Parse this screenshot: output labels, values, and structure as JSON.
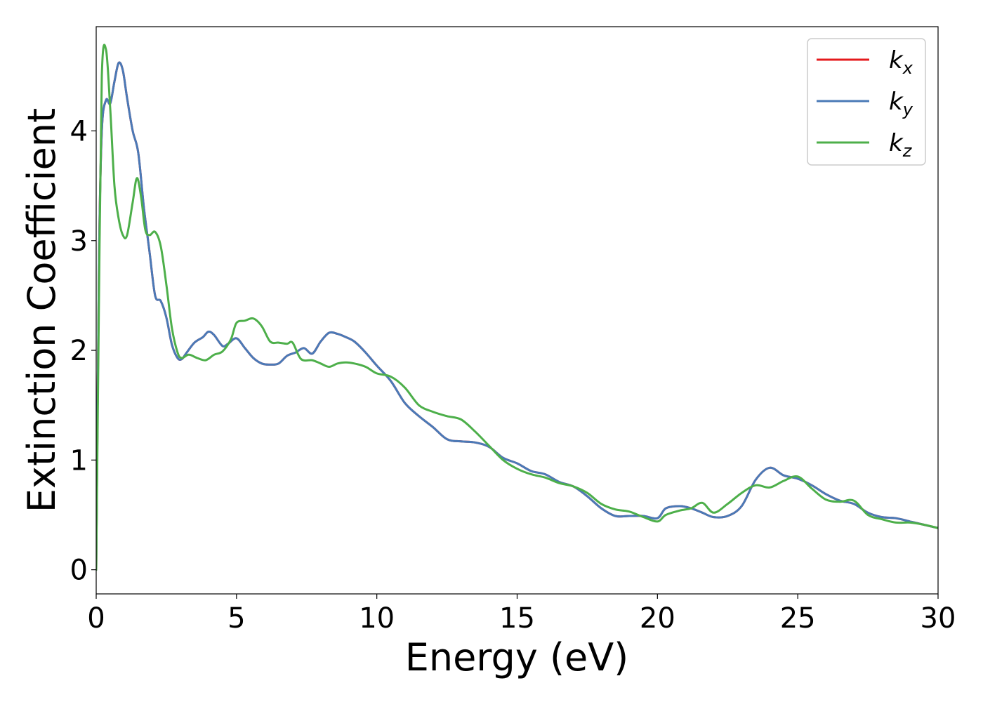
{
  "chart_data": {
    "type": "line",
    "xlabel": "Energy (eV)",
    "ylabel": "Extinction Coefficient",
    "xlim": [
      0,
      30
    ],
    "ylim": [
      -0.22,
      4.95
    ],
    "xticks": [
      "0",
      "5",
      "10",
      "15",
      "20",
      "25",
      "30"
    ],
    "yticks": [
      "0",
      "1",
      "2",
      "3",
      "4"
    ],
    "grid": false,
    "legend_position": "top-right",
    "series": [
      {
        "name": "k_x",
        "label_main": "k",
        "label_sub": "x",
        "color": "#e41a1c",
        "x": [
          0,
          0.1,
          0.2,
          0.35,
          0.5,
          0.65,
          0.8,
          0.95,
          1.1,
          1.3,
          1.5,
          1.7,
          1.9,
          2.1,
          2.3,
          2.5,
          2.7,
          2.9,
          3.05,
          3.2,
          3.5,
          3.8,
          4.0,
          4.2,
          4.5,
          4.7,
          5.0,
          5.3,
          5.6,
          5.9,
          6.2,
          6.5,
          6.8,
          7.1,
          7.4,
          7.7,
          8.0,
          8.3,
          8.6,
          8.9,
          9.2,
          9.6,
          10.0,
          10.5,
          11.0,
          11.5,
          12.0,
          12.5,
          13.0,
          13.5,
          14.0,
          14.5,
          15.0,
          15.5,
          16.0,
          16.5,
          17.0,
          17.5,
          18.0,
          18.5,
          19.0,
          19.5,
          20.0,
          20.3,
          20.8,
          21.2,
          21.6,
          22.0,
          22.5,
          23.0,
          23.5,
          24.0,
          24.5,
          25.0,
          25.5,
          26.0,
          26.5,
          27.0,
          27.5,
          28.0,
          28.5,
          29.0,
          29.5,
          30.0
        ],
        "y": [
          0.0,
          2.8,
          4.0,
          4.28,
          4.25,
          4.45,
          4.62,
          4.55,
          4.3,
          4.0,
          3.8,
          3.3,
          2.9,
          2.5,
          2.45,
          2.3,
          2.05,
          1.93,
          1.92,
          1.97,
          2.07,
          2.12,
          2.17,
          2.14,
          2.04,
          2.06,
          2.11,
          2.02,
          1.93,
          1.88,
          1.87,
          1.88,
          1.95,
          1.98,
          2.02,
          1.97,
          2.08,
          2.16,
          2.15,
          2.12,
          2.08,
          1.98,
          1.86,
          1.72,
          1.52,
          1.4,
          1.3,
          1.19,
          1.17,
          1.16,
          1.12,
          1.02,
          0.97,
          0.9,
          0.87,
          0.8,
          0.76,
          0.67,
          0.56,
          0.49,
          0.49,
          0.49,
          0.47,
          0.56,
          0.58,
          0.56,
          0.52,
          0.48,
          0.49,
          0.58,
          0.82,
          0.93,
          0.86,
          0.83,
          0.77,
          0.69,
          0.63,
          0.6,
          0.52,
          0.48,
          0.47,
          0.44,
          0.41,
          0.38
        ]
      },
      {
        "name": "k_y",
        "label_main": "k",
        "label_sub": "y",
        "color": "#4a7ab7",
        "x": [
          0,
          0.1,
          0.2,
          0.35,
          0.5,
          0.65,
          0.8,
          0.95,
          1.1,
          1.3,
          1.5,
          1.7,
          1.9,
          2.1,
          2.3,
          2.5,
          2.7,
          2.9,
          3.05,
          3.2,
          3.5,
          3.8,
          4.0,
          4.2,
          4.5,
          4.7,
          5.0,
          5.3,
          5.6,
          5.9,
          6.2,
          6.5,
          6.8,
          7.1,
          7.4,
          7.7,
          8.0,
          8.3,
          8.6,
          8.9,
          9.2,
          9.6,
          10.0,
          10.5,
          11.0,
          11.5,
          12.0,
          12.5,
          13.0,
          13.5,
          14.0,
          14.5,
          15.0,
          15.5,
          16.0,
          16.5,
          17.0,
          17.5,
          18.0,
          18.5,
          19.0,
          19.5,
          20.0,
          20.3,
          20.8,
          21.2,
          21.6,
          22.0,
          22.5,
          23.0,
          23.5,
          24.0,
          24.5,
          25.0,
          25.5,
          26.0,
          26.5,
          27.0,
          27.5,
          28.0,
          28.5,
          29.0,
          29.5,
          30.0
        ],
        "y": [
          0.0,
          2.8,
          4.0,
          4.28,
          4.25,
          4.45,
          4.62,
          4.55,
          4.3,
          4.0,
          3.8,
          3.3,
          2.9,
          2.5,
          2.45,
          2.3,
          2.05,
          1.93,
          1.92,
          1.97,
          2.07,
          2.12,
          2.17,
          2.14,
          2.04,
          2.06,
          2.11,
          2.02,
          1.93,
          1.88,
          1.87,
          1.88,
          1.95,
          1.98,
          2.02,
          1.97,
          2.08,
          2.16,
          2.15,
          2.12,
          2.08,
          1.98,
          1.86,
          1.72,
          1.52,
          1.4,
          1.3,
          1.19,
          1.17,
          1.16,
          1.12,
          1.02,
          0.97,
          0.9,
          0.87,
          0.8,
          0.76,
          0.67,
          0.56,
          0.49,
          0.49,
          0.49,
          0.47,
          0.56,
          0.58,
          0.56,
          0.52,
          0.48,
          0.49,
          0.58,
          0.82,
          0.93,
          0.86,
          0.83,
          0.77,
          0.69,
          0.63,
          0.6,
          0.52,
          0.48,
          0.47,
          0.44,
          0.41,
          0.38
        ]
      },
      {
        "name": "k_z",
        "label_main": "k",
        "label_sub": "z",
        "color": "#4daf4a",
        "x": [
          0,
          0.1,
          0.2,
          0.35,
          0.5,
          0.65,
          0.8,
          0.95,
          1.1,
          1.3,
          1.45,
          1.6,
          1.75,
          1.9,
          2.1,
          2.3,
          2.5,
          2.7,
          2.9,
          3.05,
          3.3,
          3.6,
          3.9,
          4.2,
          4.5,
          4.8,
          5.0,
          5.3,
          5.6,
          5.9,
          6.2,
          6.5,
          6.8,
          7.0,
          7.3,
          7.7,
          8.0,
          8.3,
          8.6,
          8.9,
          9.2,
          9.6,
          10.0,
          10.5,
          11.0,
          11.5,
          12.0,
          12.5,
          13.0,
          13.5,
          14.0,
          14.5,
          15.0,
          15.5,
          16.0,
          16.5,
          17.0,
          17.5,
          18.0,
          18.5,
          19.0,
          19.5,
          20.0,
          20.3,
          20.8,
          21.2,
          21.6,
          22.0,
          22.5,
          23.0,
          23.5,
          24.0,
          24.5,
          25.0,
          25.5,
          26.0,
          26.5,
          27.0,
          27.5,
          28.0,
          28.5,
          29.0,
          29.5,
          30.0
        ],
        "y": [
          0.0,
          2.5,
          4.5,
          4.74,
          4.2,
          3.5,
          3.2,
          3.05,
          3.05,
          3.35,
          3.57,
          3.4,
          3.1,
          3.05,
          3.08,
          2.95,
          2.6,
          2.2,
          1.98,
          1.93,
          1.96,
          1.93,
          1.91,
          1.96,
          1.99,
          2.1,
          2.25,
          2.27,
          2.29,
          2.22,
          2.08,
          2.07,
          2.06,
          2.07,
          1.92,
          1.91,
          1.88,
          1.85,
          1.88,
          1.89,
          1.88,
          1.85,
          1.79,
          1.76,
          1.66,
          1.5,
          1.44,
          1.4,
          1.37,
          1.26,
          1.13,
          1.0,
          0.92,
          0.87,
          0.84,
          0.79,
          0.76,
          0.7,
          0.6,
          0.55,
          0.53,
          0.48,
          0.44,
          0.5,
          0.54,
          0.56,
          0.61,
          0.52,
          0.6,
          0.7,
          0.77,
          0.75,
          0.81,
          0.85,
          0.74,
          0.64,
          0.62,
          0.63,
          0.5,
          0.46,
          0.43,
          0.43,
          0.41,
          0.38
        ]
      }
    ]
  }
}
